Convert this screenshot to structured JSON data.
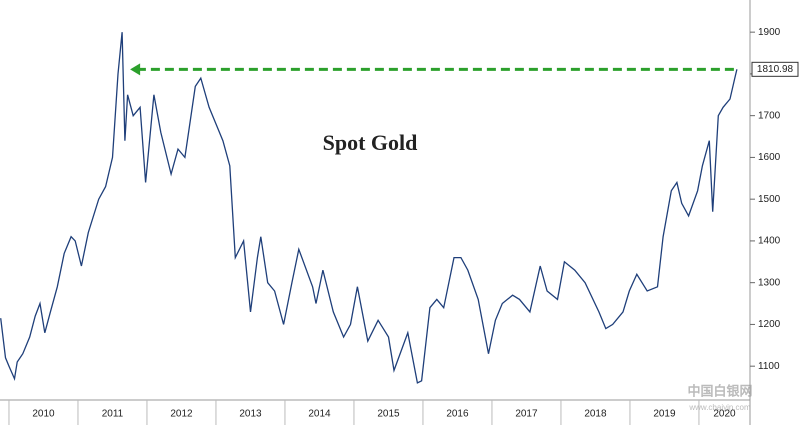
{
  "chart_data": {
    "type": "line",
    "annotation": "Spot Gold",
    "watermark": [
      "中国白银网",
      "www.cbaiyin.com"
    ],
    "x": [
      2009.88,
      2009.95,
      2010.0,
      2010.08,
      2010.12,
      2010.2,
      2010.3,
      2010.38,
      2010.45,
      2010.52,
      2010.6,
      2010.7,
      2010.8,
      2010.9,
      2010.96,
      2011.05,
      2011.15,
      2011.3,
      2011.4,
      2011.5,
      2011.58,
      2011.64,
      2011.68,
      2011.72,
      2011.8,
      2011.9,
      2011.98,
      2012.1,
      2012.2,
      2012.35,
      2012.45,
      2012.55,
      2012.7,
      2012.78,
      2012.9,
      2013.0,
      2013.1,
      2013.2,
      2013.28,
      2013.4,
      2013.5,
      2013.6,
      2013.65,
      2013.75,
      2013.85,
      2013.98,
      2014.1,
      2014.2,
      2014.4,
      2014.45,
      2014.55,
      2014.7,
      2014.85,
      2014.95,
      2015.05,
      2015.2,
      2015.35,
      2015.5,
      2015.58,
      2015.78,
      2015.92,
      2015.98,
      2016.1,
      2016.2,
      2016.3,
      2016.45,
      2016.55,
      2016.65,
      2016.8,
      2016.95,
      2017.05,
      2017.15,
      2017.3,
      2017.4,
      2017.55,
      2017.7,
      2017.8,
      2017.95,
      2018.05,
      2018.2,
      2018.35,
      2018.55,
      2018.65,
      2018.75,
      2018.9,
      2018.99,
      2019.1,
      2019.25,
      2019.4,
      2019.48,
      2019.6,
      2019.68,
      2019.75,
      2019.85,
      2019.98,
      2020.05,
      2020.15,
      2020.2,
      2020.28,
      2020.35,
      2020.45,
      2020.52,
      2020.55
    ],
    "series": [
      {
        "color": "#1f3f7a",
        "values": [
          1215,
          1120,
          1100,
          1070,
          1110,
          1130,
          1170,
          1220,
          1250,
          1180,
          1230,
          1290,
          1370,
          1410,
          1400,
          1340,
          1420,
          1500,
          1530,
          1600,
          1800,
          1900,
          1640,
          1750,
          1700,
          1720,
          1540,
          1750,
          1660,
          1560,
          1620,
          1600,
          1770,
          1790,
          1720,
          1680,
          1640,
          1580,
          1360,
          1400,
          1230,
          1360,
          1410,
          1300,
          1280,
          1200,
          1300,
          1380,
          1290,
          1250,
          1330,
          1230,
          1170,
          1200,
          1290,
          1160,
          1210,
          1170,
          1090,
          1180,
          1060,
          1065,
          1240,
          1260,
          1240,
          1360,
          1360,
          1330,
          1260,
          1130,
          1210,
          1250,
          1270,
          1260,
          1230,
          1340,
          1280,
          1260,
          1350,
          1330,
          1300,
          1230,
          1190,
          1200,
          1230,
          1280,
          1320,
          1280,
          1290,
          1410,
          1520,
          1540,
          1490,
          1460,
          1520,
          1580,
          1640,
          1470,
          1700,
          1720,
          1740,
          1790,
          1810.98
        ]
      }
    ],
    "xlim": [
      2009.87,
      2020.74
    ],
    "xticks": [
      2010,
      2011,
      2012,
      2013,
      2014,
      2015,
      2016,
      2017,
      2018,
      2019,
      2020
    ],
    "ylim": [
      1019,
      1977
    ],
    "yticks": [
      1100,
      1200,
      1300,
      1400,
      1500,
      1600,
      1700,
      1800,
      1900
    ],
    "arrow_color": "#2ca02c",
    "grid": false
  }
}
